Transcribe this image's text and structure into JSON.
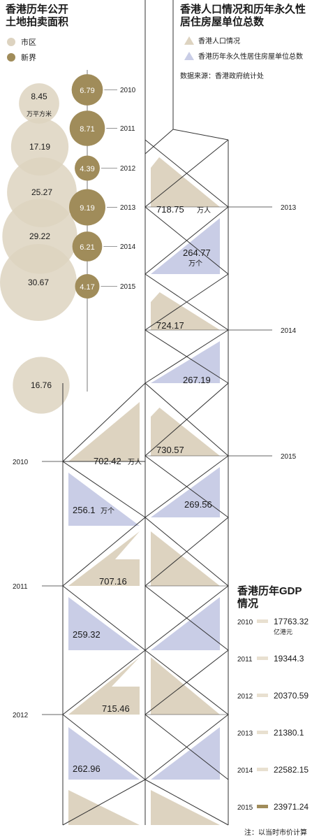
{
  "land_chart": {
    "title_line1": "香港历年公开",
    "title_line2": "土地拍卖面积",
    "legend": [
      {
        "label": "市区",
        "color": "#ddd3c0"
      },
      {
        "label": "新界",
        "color": "#a08c5a"
      }
    ],
    "unit": "万平方米",
    "years": [
      "2010",
      "2011",
      "2012",
      "2013",
      "2014",
      "2015"
    ],
    "urban": [
      8.45,
      17.19,
      25.27,
      29.22,
      30.67,
      16.76
    ],
    "new_territories": [
      6.79,
      8.71,
      4.39,
      9.19,
      6.21,
      4.17
    ]
  },
  "population_chart": {
    "title_line1": "香港人口情况和历年永久性",
    "title_line2": "居住房屋单位总数",
    "legend": [
      {
        "label": "香港人口情况",
        "color": "#ddd3c0"
      },
      {
        "label": "香港历年永久性居住房屋单位总数",
        "color": "#c9cde6"
      }
    ],
    "source": "数据来源：香港政府统计处",
    "population_unit": "万人",
    "housing_unit": "万个",
    "population": [
      {
        "year": "2010",
        "value": "702.42"
      },
      {
        "year": "2011",
        "value": "707.16"
      },
      {
        "year": "2012",
        "value": "715.46"
      },
      {
        "year": "2013",
        "value": "718.75"
      },
      {
        "year": "2014",
        "value": "724.17"
      },
      {
        "year": "2015",
        "value": "730.57"
      }
    ],
    "housing": [
      {
        "year": "2010",
        "value": "256.1"
      },
      {
        "year": "2011",
        "value": "259.32"
      },
      {
        "year": "2012",
        "value": "262.96"
      },
      {
        "year": "2013",
        "value": "264.77"
      },
      {
        "year": "2014",
        "value": "267.19"
      },
      {
        "year": "2015",
        "value": "269.56"
      }
    ]
  },
  "gdp_chart": {
    "title_line1": "香港历年GDP",
    "title_line2": "情况",
    "unit": "亿港元",
    "note": "注：以当时市价计算",
    "years": [
      "2010",
      "2011",
      "2012",
      "2013",
      "2014",
      "2015"
    ],
    "values": [
      17763.32,
      19344.3,
      20370.59,
      21380.1,
      22582.15,
      23971.24
    ],
    "labels": [
      "17763.32",
      "19344.3",
      "20370.59",
      "21380.1",
      "22582.15",
      "23971.24"
    ],
    "bar_color": "#e8e0d0",
    "highlight_color": "#a08c5a"
  },
  "chart_data": [
    {
      "type": "scatter",
      "title": "香港历年公开土地拍卖面积",
      "x": [
        "2010",
        "2011",
        "2012",
        "2013",
        "2014",
        "2015"
      ],
      "series": [
        {
          "name": "市区",
          "values": [
            8.45,
            17.19,
            25.27,
            29.22,
            30.67,
            16.76
          ]
        },
        {
          "name": "新界",
          "values": [
            6.79,
            8.71,
            4.39,
            9.19,
            6.21,
            4.17
          ]
        }
      ],
      "ylabel": "万平方米"
    },
    {
      "type": "area",
      "title": "香港人口情况和历年永久性居住房屋单位总数",
      "x": [
        "2010",
        "2011",
        "2012",
        "2013",
        "2014",
        "2015"
      ],
      "series": [
        {
          "name": "香港人口情况",
          "values": [
            702.42,
            707.16,
            715.46,
            718.75,
            724.17,
            730.57
          ]
        },
        {
          "name": "香港历年永久性居住房屋单位总数",
          "values": [
            256.1,
            259.32,
            262.96,
            264.77,
            267.19,
            269.56
          ]
        }
      ]
    },
    {
      "type": "bar",
      "title": "香港历年GDP情况",
      "categories": [
        "2010",
        "2011",
        "2012",
        "2013",
        "2014",
        "2015"
      ],
      "values": [
        17763.32,
        19344.3,
        20370.59,
        21380.1,
        22582.15,
        23971.24
      ],
      "ylabel": "亿港元"
    }
  ]
}
